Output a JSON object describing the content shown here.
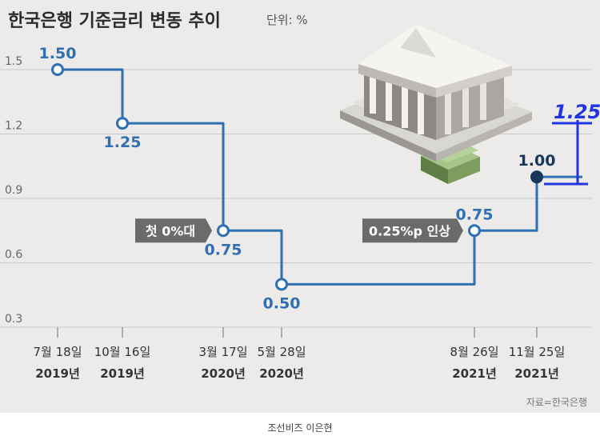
{
  "title": "한국은행 기준금리 변동 추이",
  "unit": "단위: %",
  "source": "자료=한국은행",
  "credit": "조선비즈 이은현",
  "handwritten": "1.25",
  "colors": {
    "line": "#2f6fb3",
    "last_point": "#17375e",
    "grid": "#c9c9c9",
    "annotation_bg": "#6b6b6b",
    "handwritten": "#1f35e0"
  },
  "chart_data": {
    "type": "line",
    "step": true,
    "title": "한국은행 기준금리 변동 추이",
    "ylabel": "단위: %",
    "ylim": [
      0.3,
      1.5
    ],
    "y_ticks": [
      "1.5",
      "1.2",
      "0.9",
      "0.6",
      "0.3"
    ],
    "grid": true,
    "x": [
      {
        "date": "7월 18일",
        "year": "2019년"
      },
      {
        "date": "10월 16일",
        "year": "2019년"
      },
      {
        "date": "3월 17일",
        "year": "2020년"
      },
      {
        "date": "5월 28일",
        "year": "2020년"
      },
      {
        "date": "8월 26일",
        "year": "2021년"
      },
      {
        "date": "11월 25일",
        "year": "2021년"
      }
    ],
    "values": [
      1.5,
      1.25,
      0.75,
      0.5,
      0.75,
      1.0
    ],
    "labels": [
      "1.50",
      "1.25",
      "0.75",
      "0.50",
      "0.75",
      "1.00"
    ],
    "annotations": [
      {
        "text": "첫 0%대",
        "point": 2
      },
      {
        "text": "0.25%p 인상",
        "point": 4
      }
    ]
  }
}
